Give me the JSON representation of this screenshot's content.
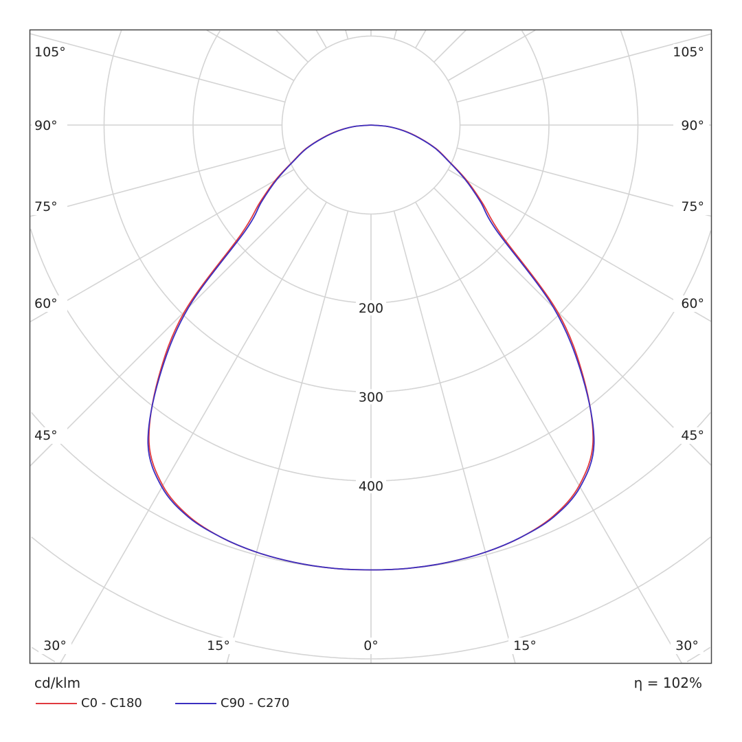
{
  "chart_data": {
    "type": "polar-line",
    "title": "",
    "unit_label": "cd/klm",
    "efficiency_label": "η = 102%",
    "radial_range": [
      0,
      700
    ],
    "radial_ticks": [
      100,
      200,
      300,
      400,
      500,
      600,
      700
    ],
    "radial_tick_labels": [
      "200",
      "300",
      "400"
    ],
    "radial_tick_label_values": [
      200,
      300,
      400
    ],
    "angle_labels_left": [
      "105°",
      "90°",
      "75°",
      "60°",
      "45°"
    ],
    "angle_labels_right": [
      "105°",
      "90°",
      "75°",
      "60°",
      "45°"
    ],
    "angle_labels_bottom": [
      "30°",
      "15°",
      "0°",
      "15°",
      "30°"
    ],
    "angle_step_deg": 15,
    "grid": true,
    "legend_position": "bottom-left",
    "gamma_deg": [
      0,
      5,
      10,
      15,
      20,
      25,
      30,
      35,
      40,
      45,
      50,
      55,
      60,
      65,
      70,
      75,
      80,
      85,
      90
    ],
    "series": [
      {
        "name": "C0 - C180",
        "color": "#e0393e",
        "values": [
          500,
          500,
          499,
          497,
          493,
          485,
          468,
          435,
          372,
          296,
          190,
          153,
          124,
          97,
          78,
          57,
          38,
          19,
          0
        ]
      },
      {
        "name": "C90 - C270",
        "color": "#3a2fc0",
        "values": [
          500,
          500,
          499,
          497,
          493,
          486,
          470,
          437,
          370,
          290,
          184,
          150,
          122,
          96,
          77,
          56,
          37,
          19,
          0
        ]
      }
    ]
  }
}
